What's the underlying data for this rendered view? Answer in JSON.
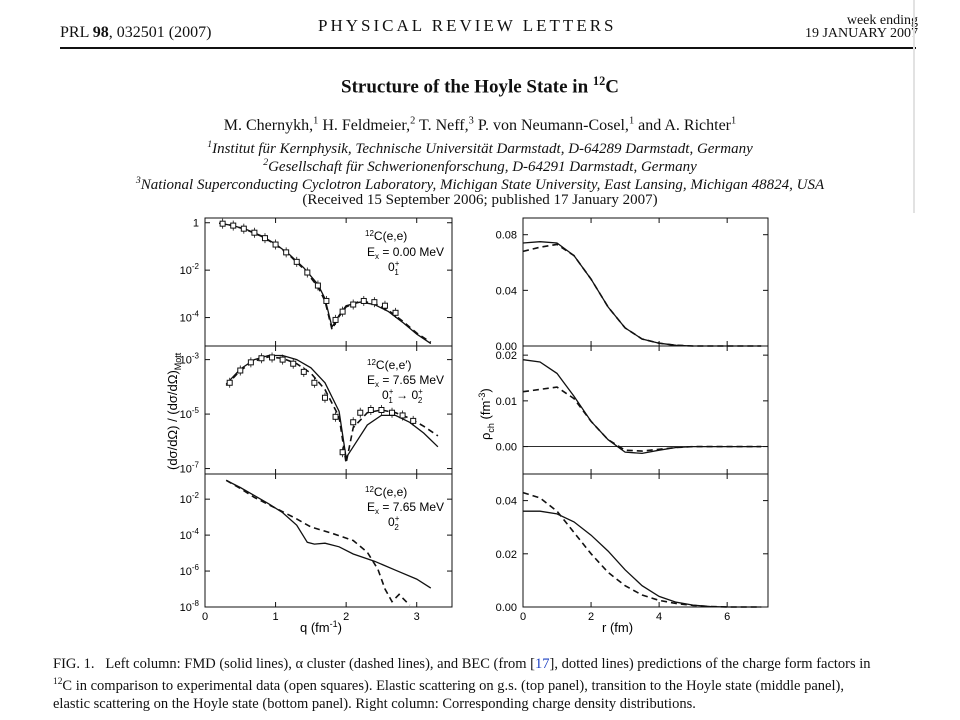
{
  "header": {
    "journal_ref_prefix": "PRL ",
    "volume": "98",
    "article": ", 032501 (2007)",
    "journal_name": "PHYSICAL REVIEW LETTERS",
    "week_ending_label": "week ending",
    "week_ending_date": "19 JANUARY 2007"
  },
  "paper": {
    "title_prefix": "Structure of the Hoyle State in ",
    "title_mass": "12",
    "title_element": "C",
    "authors": [
      {
        "name": "M. Chernykh,",
        "aff": "1"
      },
      {
        "name": "H. Feldmeier,",
        "aff": "2"
      },
      {
        "name": "T. Neff,",
        "aff": "3"
      },
      {
        "name": "P. von Neumann-Cosel,",
        "aff": "1"
      },
      {
        "name": "and A. Richter",
        "aff": "1"
      }
    ],
    "affiliations": [
      {
        "num": "1",
        "text": "Institut für Kernphysik, Technische Universität Darmstadt, D-64289 Darmstadt, Germany"
      },
      {
        "num": "2",
        "text": "Gesellschaft für Schwerionenforschung, D-64291 Darmstadt, Germany"
      },
      {
        "num": "3",
        "text": "National Superconducting Cyclotron Laboratory, Michigan State University, East Lansing, Michigan 48824, USA"
      }
    ],
    "received": "(Received 15 September 2006; published 17 January 2007)"
  },
  "figure": {
    "left_ylabel": "(dσ/dΩ) / (dσ/dΩ)",
    "left_ylabel_sub": "Mott",
    "left_xlabel": "q (fm",
    "left_xlabel_sup": "-1",
    "right_ylabel": "ρ",
    "right_ylabel_sub": "ch",
    "right_ylabel_unit": "(fm",
    "right_ylabel_unit_sup": "-3",
    "right_xlabel": "r (fm)",
    "panels": [
      {
        "reaction_mass": "12",
        "reaction": "C(e,e)",
        "energy": "E",
        "energy_sub": "x",
        "energy_val": " = 0.00 MeV",
        "state": "0",
        "state_sup": "+",
        "state_sub": "1"
      },
      {
        "reaction_mass": "12",
        "reaction": "C(e,e′)",
        "energy": "E",
        "energy_sub": "x",
        "energy_val": " = 7.65 MeV",
        "transition": "0",
        "t_sup1": "+",
        "t_sub1": "1",
        "arrow": " → 0",
        "t_sup2": "+",
        "t_sub2": "2"
      },
      {
        "reaction_mass": "12",
        "reaction": "C(e,e)",
        "energy": "E",
        "energy_sub": "x",
        "energy_val": " = 7.65 MeV",
        "state": "0",
        "state_sup": "+",
        "state_sub": "2"
      }
    ]
  },
  "caption": {
    "fig_label": "FIG. 1.",
    "part1": "Left column: FMD (solid lines), α cluster (dashed lines), and BEC (from [",
    "ref": "17",
    "part2": "], dotted lines) predictions of the charge form factors in ",
    "mass": "12",
    "part3": "C in comparison to experimental data (open squares). Elastic scattering on g.s. (top panel), transition to the Hoyle state (middle panel), elastic scattering on the Hoyle state (bottom panel). Right column: Corresponding charge density distributions."
  },
  "chart_data": [
    {
      "type": "line",
      "panel": "left-top",
      "xlabel": "q (fm-1)",
      "ylabel": "(dσ/dΩ) / (dσ/dΩ)Mott",
      "xlim": [
        0,
        3.5
      ],
      "ylim_log10": [
        -5.2,
        0.2
      ],
      "yticks": [
        "1",
        "10-2",
        "10-4"
      ],
      "series": [
        {
          "name": "FMD",
          "x": [
            0.2,
            0.4,
            0.6,
            0.8,
            1.0,
            1.2,
            1.4,
            1.6,
            1.7,
            1.8,
            1.9,
            2.0,
            2.2,
            2.4,
            2.6,
            2.8,
            3.0,
            3.2
          ],
          "log10_y": [
            -0.02,
            -0.12,
            -0.3,
            -0.55,
            -0.9,
            -1.35,
            -1.9,
            -2.6,
            -3.2,
            -4.4,
            -3.9,
            -3.5,
            -3.35,
            -3.45,
            -3.75,
            -4.2,
            -4.7,
            -5.1
          ]
        },
        {
          "name": "α cluster",
          "x": [
            0.2,
            0.4,
            0.6,
            0.8,
            1.0,
            1.2,
            1.4,
            1.6,
            1.7,
            1.8,
            1.9,
            2.0,
            2.2,
            2.4,
            2.6,
            2.8,
            3.0,
            3.2
          ],
          "log10_y": [
            -0.02,
            -0.12,
            -0.31,
            -0.57,
            -0.92,
            -1.38,
            -1.95,
            -2.7,
            -3.3,
            -4.5,
            -3.95,
            -3.55,
            -3.3,
            -3.4,
            -3.7,
            -4.15,
            -4.65,
            -5.05
          ]
        },
        {
          "name": "data",
          "x": [
            0.25,
            0.4,
            0.55,
            0.7,
            0.85,
            1.0,
            1.15,
            1.3,
            1.45,
            1.6,
            1.72,
            1.85,
            1.95,
            2.1,
            2.25,
            2.4,
            2.55,
            2.7
          ],
          "log10_y": [
            -0.04,
            -0.12,
            -0.25,
            -0.42,
            -0.65,
            -0.92,
            -1.25,
            -1.65,
            -2.1,
            -2.65,
            -3.3,
            -4.1,
            -3.75,
            -3.45,
            -3.3,
            -3.35,
            -3.5,
            -3.8
          ]
        }
      ]
    },
    {
      "type": "line",
      "panel": "left-middle",
      "xlim": [
        0,
        3.5
      ],
      "ylim_log10": [
        -7.2,
        -2.5
      ],
      "yticks": [
        "10-3",
        "10-5",
        "10-7"
      ],
      "series": [
        {
          "name": "FMD",
          "x": [
            0.3,
            0.5,
            0.7,
            0.9,
            1.1,
            1.3,
            1.5,
            1.7,
            1.9,
            2.0,
            2.1,
            2.3,
            2.5,
            2.7,
            2.9,
            3.1,
            3.3
          ],
          "log10_y": [
            -3.9,
            -3.35,
            -3.0,
            -2.85,
            -2.85,
            -3.0,
            -3.3,
            -3.85,
            -4.9,
            -6.6,
            -6.2,
            -5.4,
            -5.05,
            -5.05,
            -5.3,
            -5.7,
            -6.2
          ]
        },
        {
          "name": "α cluster",
          "x": [
            0.3,
            0.5,
            0.7,
            0.9,
            1.1,
            1.3,
            1.5,
            1.7,
            1.9,
            2.0,
            2.1,
            2.3,
            2.5,
            2.7,
            2.9,
            3.1,
            3.3
          ],
          "log10_y": [
            -3.95,
            -3.4,
            -3.05,
            -2.9,
            -2.95,
            -3.15,
            -3.5,
            -4.1,
            -5.1,
            -6.8,
            -5.5,
            -4.95,
            -4.85,
            -4.95,
            -5.15,
            -5.45,
            -5.8
          ]
        },
        {
          "name": "data",
          "x": [
            0.35,
            0.5,
            0.65,
            0.8,
            0.95,
            1.1,
            1.25,
            1.4,
            1.55,
            1.7,
            1.85,
            1.95,
            2.1,
            2.2,
            2.35,
            2.5,
            2.65,
            2.8,
            2.95
          ],
          "log10_y": [
            -3.85,
            -3.4,
            -3.1,
            -2.95,
            -2.92,
            -3.0,
            -3.15,
            -3.45,
            -3.85,
            -4.4,
            -5.1,
            -6.4,
            -5.3,
            -4.95,
            -4.85,
            -4.85,
            -4.95,
            -5.05,
            -5.25
          ]
        }
      ]
    },
    {
      "type": "line",
      "panel": "left-bottom",
      "xlim": [
        0,
        3.5
      ],
      "ylim_log10": [
        -8.0,
        -0.6
      ],
      "yticks": [
        "10-2",
        "10-4",
        "10-6",
        "10-8"
      ],
      "series": [
        {
          "name": "FMD",
          "x": [
            0.3,
            0.5,
            0.7,
            0.9,
            1.1,
            1.3,
            1.45,
            1.55,
            1.7,
            1.9,
            2.1,
            2.4,
            2.7,
            3.0,
            3.2
          ],
          "log10_y": [
            -0.95,
            -1.35,
            -1.8,
            -2.25,
            -2.75,
            -3.45,
            -4.4,
            -4.5,
            -4.45,
            -4.65,
            -5.05,
            -5.45,
            -5.95,
            -6.45,
            -6.95
          ]
        },
        {
          "name": "α cluster",
          "x": [
            0.3,
            0.5,
            0.7,
            0.9,
            1.1,
            1.3,
            1.5,
            1.8,
            2.1,
            2.3,
            2.45,
            2.55,
            2.65,
            2.75,
            2.9
          ],
          "log10_y": [
            -0.95,
            -1.4,
            -1.9,
            -2.3,
            -2.7,
            -3.1,
            -3.55,
            -3.9,
            -4.3,
            -4.95,
            -5.9,
            -7.0,
            -7.7,
            -7.3,
            -7.9
          ]
        }
      ]
    },
    {
      "type": "line",
      "panel": "right-top",
      "xlabel": "r (fm)",
      "ylabel": "ρch (fm-3)",
      "xlim": [
        0,
        7.2
      ],
      "ylim": [
        0,
        0.092
      ],
      "yticks": [
        "0.00",
        "0.04",
        "0.08"
      ],
      "series": [
        {
          "name": "FMD",
          "x": [
            0,
            0.5,
            1.0,
            1.5,
            2.0,
            2.5,
            3.0,
            3.5,
            4.0,
            4.5,
            5,
            6,
            7
          ],
          "y": [
            0.074,
            0.075,
            0.074,
            0.065,
            0.048,
            0.028,
            0.013,
            0.005,
            0.002,
            0.0005,
            0,
            0,
            0
          ]
        },
        {
          "name": "α cluster",
          "x": [
            0,
            0.5,
            1.0,
            1.5,
            2.0,
            2.5,
            3.0,
            3.5,
            4.0,
            4.5,
            5,
            6,
            7
          ],
          "y": [
            0.068,
            0.071,
            0.073,
            0.065,
            0.048,
            0.028,
            0.013,
            0.005,
            0.002,
            0.0005,
            0,
            0,
            0
          ]
        }
      ]
    },
    {
      "type": "line",
      "panel": "right-middle",
      "xlim": [
        0,
        7.2
      ],
      "ylim": [
        -0.006,
        0.022
      ],
      "yticks": [
        "0.00",
        "0.01",
        "0.02"
      ],
      "series": [
        {
          "name": "FMD",
          "x": [
            0,
            0.5,
            1.0,
            1.5,
            2.0,
            2.5,
            3.0,
            3.5,
            4.0,
            4.5,
            5,
            6,
            7
          ],
          "y": [
            0.019,
            0.0185,
            0.016,
            0.011,
            0.0055,
            0.0015,
            -0.0012,
            -0.0015,
            -0.0008,
            -0.0002,
            0,
            0,
            0
          ]
        },
        {
          "name": "α cluster",
          "x": [
            0,
            0.5,
            1.0,
            1.5,
            2.0,
            2.5,
            3.0,
            3.5,
            4.0,
            4.5,
            5,
            6,
            7
          ],
          "y": [
            0.012,
            0.0125,
            0.013,
            0.0105,
            0.0055,
            0.0015,
            -0.0008,
            -0.001,
            -0.0006,
            -0.0002,
            0,
            0,
            0
          ]
        }
      ]
    },
    {
      "type": "line",
      "panel": "right-bottom",
      "xlim": [
        0,
        7.2
      ],
      "ylim": [
        0,
        0.05
      ],
      "yticks": [
        "0.00",
        "0.02",
        "0.04"
      ],
      "series": [
        {
          "name": "FMD",
          "x": [
            0,
            0.5,
            1.0,
            1.5,
            2.0,
            2.5,
            3.0,
            3.5,
            4.0,
            4.5,
            5,
            5.5,
            6,
            7
          ],
          "y": [
            0.036,
            0.036,
            0.035,
            0.032,
            0.027,
            0.021,
            0.014,
            0.008,
            0.004,
            0.0018,
            0.0007,
            0.0002,
            0,
            0
          ]
        },
        {
          "name": "α cluster",
          "x": [
            0,
            0.5,
            1.0,
            1.5,
            2.0,
            2.5,
            3.0,
            3.5,
            4.0,
            4.5,
            5,
            5.5,
            6,
            7
          ],
          "y": [
            0.043,
            0.041,
            0.036,
            0.028,
            0.02,
            0.013,
            0.008,
            0.0045,
            0.0025,
            0.0013,
            0.0006,
            0.0002,
            0,
            0
          ]
        }
      ]
    }
  ]
}
